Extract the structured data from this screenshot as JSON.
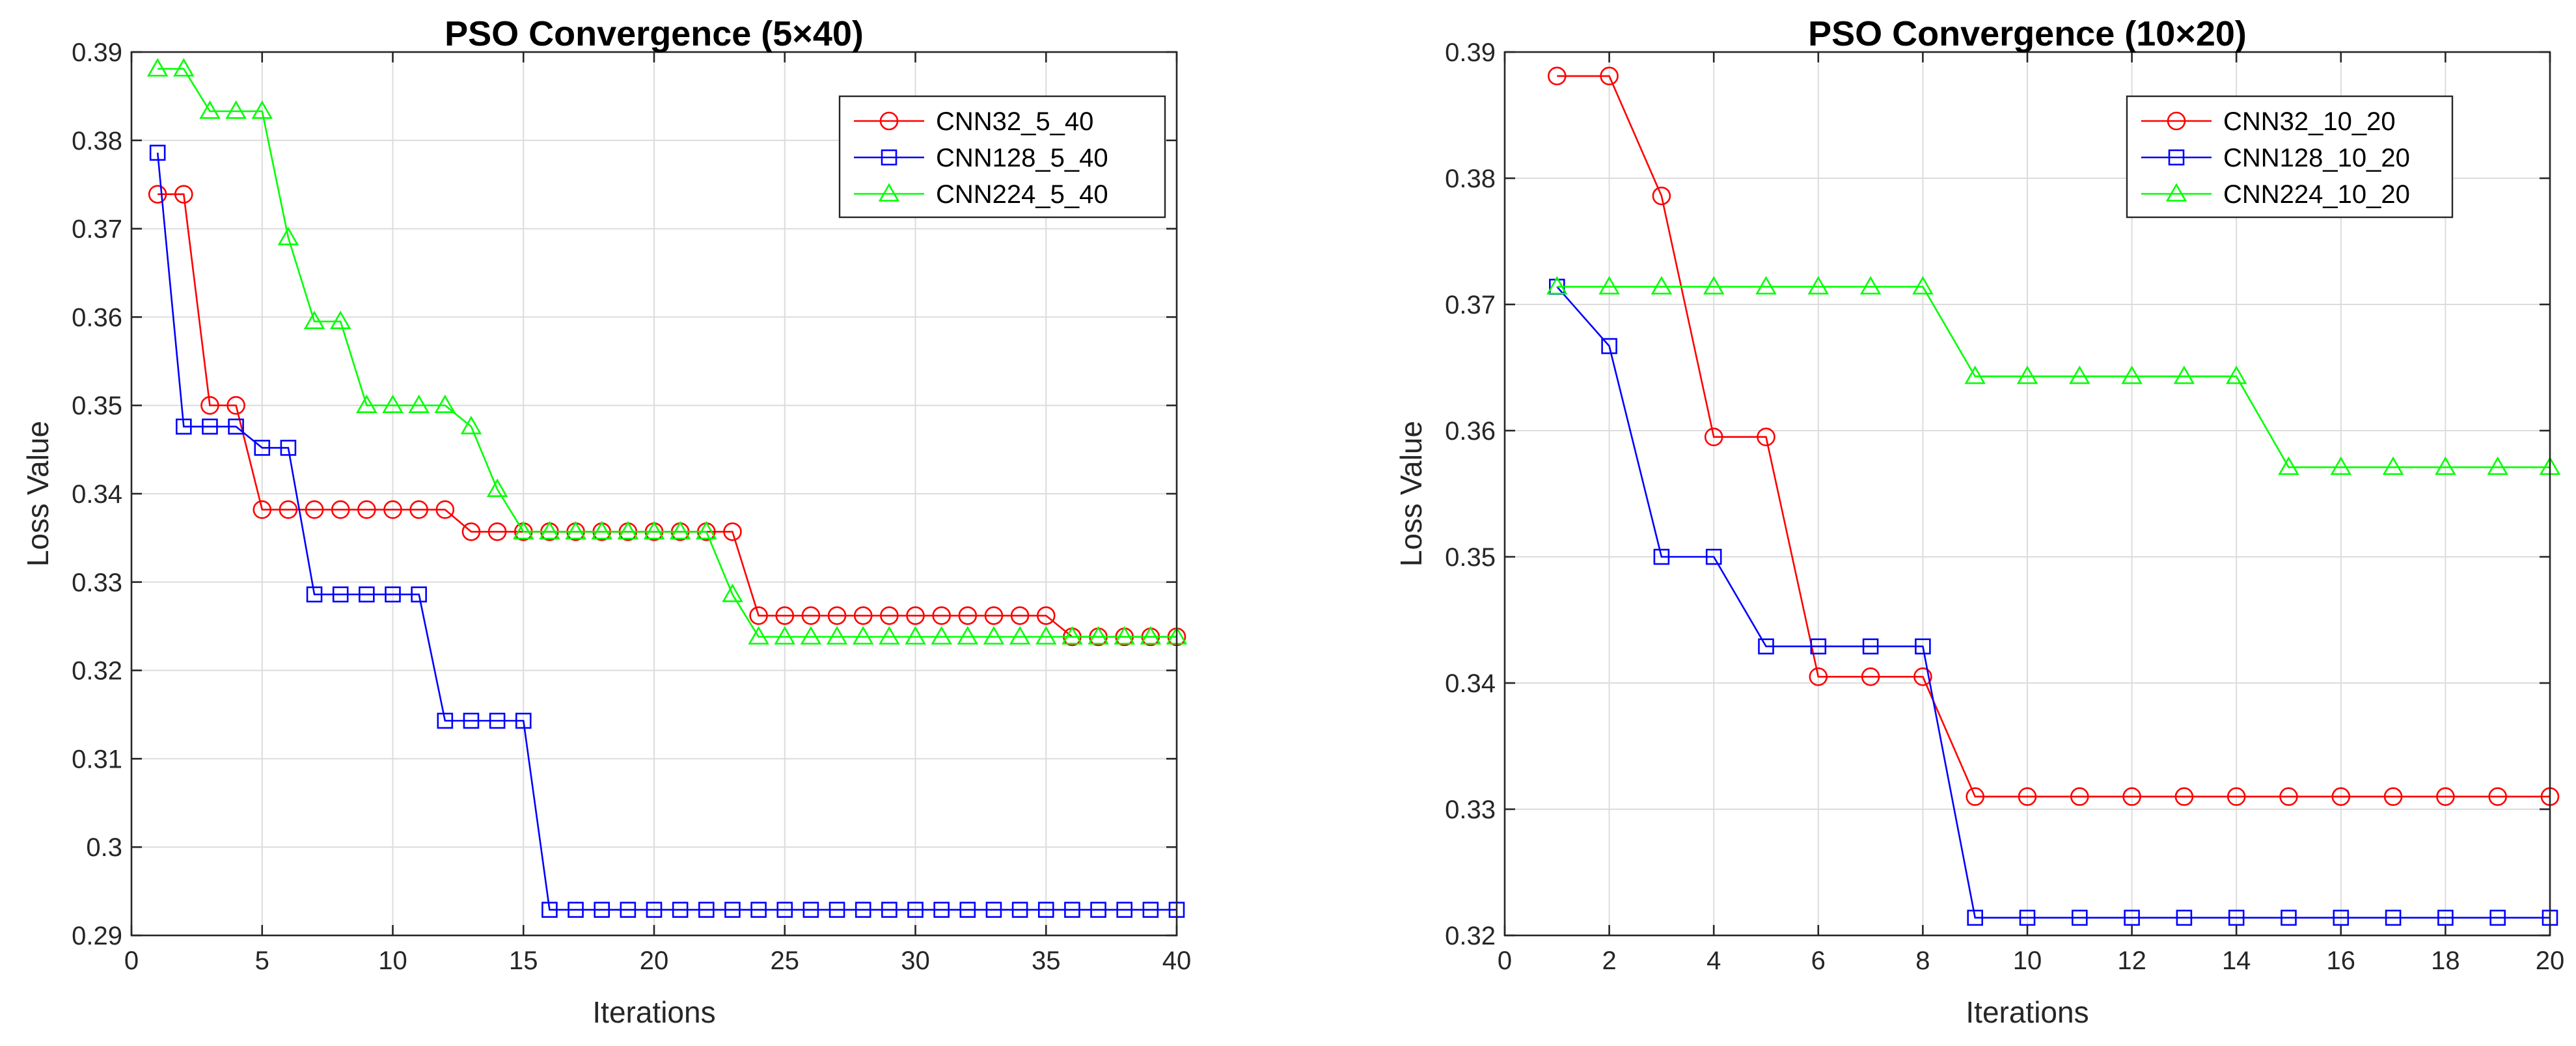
{
  "colors": {
    "red": "#ff0000",
    "blue": "#0000ff",
    "green": "#00ff00",
    "grid": "#dcdcdc",
    "axis": "#262626"
  },
  "chart_data": [
    {
      "type": "line",
      "title": "PSO Convergence (5×40)",
      "xlabel": "Iterations",
      "ylabel": "Loss Value",
      "xlim": [
        0,
        40
      ],
      "ylim": [
        0.29,
        0.39
      ],
      "xticks": [
        0,
        5,
        10,
        15,
        20,
        25,
        30,
        35,
        40
      ],
      "yticks": [
        0.29,
        0.3,
        0.31,
        0.32,
        0.33,
        0.34,
        0.35,
        0.36,
        0.37,
        0.38,
        0.39
      ],
      "xtick_labels": [
        "0",
        "5",
        "10",
        "15",
        "20",
        "25",
        "30",
        "35",
        "40"
      ],
      "ytick_labels": [
        "0.29",
        "0.3",
        "0.31",
        "0.32",
        "0.33",
        "0.34",
        "0.35",
        "0.36",
        "0.37",
        "0.38",
        "0.39"
      ],
      "grid": true,
      "legend_position": "top-right",
      "x": [
        1,
        2,
        3,
        4,
        5,
        6,
        7,
        8,
        9,
        10,
        11,
        12,
        13,
        14,
        15,
        16,
        17,
        18,
        19,
        20,
        21,
        22,
        23,
        24,
        25,
        26,
        27,
        28,
        29,
        30,
        31,
        32,
        33,
        34,
        35,
        36,
        37,
        38,
        39,
        40
      ],
      "series": [
        {
          "name": "CNN32_5_40",
          "color": "red",
          "marker": "circle",
          "values": [
            0.3739,
            0.3739,
            0.35,
            0.35,
            0.3382,
            0.3382,
            0.3382,
            0.3382,
            0.3382,
            0.3382,
            0.3382,
            0.3382,
            0.3357,
            0.3357,
            0.3357,
            0.3357,
            0.3357,
            0.3357,
            0.3357,
            0.3357,
            0.3357,
            0.3357,
            0.3357,
            0.3262,
            0.3262,
            0.3262,
            0.3262,
            0.3262,
            0.3262,
            0.3262,
            0.3262,
            0.3262,
            0.3262,
            0.3262,
            0.3262,
            0.3238,
            0.3238,
            0.3238,
            0.3238,
            0.3238
          ]
        },
        {
          "name": "CNN128_5_40",
          "color": "blue",
          "marker": "square",
          "values": [
            0.3786,
            0.3476,
            0.3476,
            0.3476,
            0.3452,
            0.3452,
            0.3286,
            0.3286,
            0.3286,
            0.3286,
            0.3286,
            0.3143,
            0.3143,
            0.3143,
            0.3143,
            0.2929,
            0.2929,
            0.2929,
            0.2929,
            0.2929,
            0.2929,
            0.2929,
            0.2929,
            0.2929,
            0.2929,
            0.2929,
            0.2929,
            0.2929,
            0.2929,
            0.2929,
            0.2929,
            0.2929,
            0.2929,
            0.2929,
            0.2929,
            0.2929,
            0.2929,
            0.2929,
            0.2929,
            0.2929
          ]
        },
        {
          "name": "CNN224_5_40",
          "color": "green",
          "marker": "triangle",
          "values": [
            0.3881,
            0.3881,
            0.3833,
            0.3833,
            0.3833,
            0.369,
            0.3595,
            0.3595,
            0.35,
            0.35,
            0.35,
            0.35,
            0.3476,
            0.3405,
            0.3357,
            0.3357,
            0.3357,
            0.3357,
            0.3357,
            0.3357,
            0.3357,
            0.3357,
            0.3286,
            0.3238,
            0.3238,
            0.3238,
            0.3238,
            0.3238,
            0.3238,
            0.3238,
            0.3238,
            0.3238,
            0.3238,
            0.3238,
            0.3238,
            0.3238,
            0.3238,
            0.3238,
            0.3238,
            0.3238
          ]
        }
      ]
    },
    {
      "type": "line",
      "title": "PSO Convergence (10×20)",
      "xlabel": "Iterations",
      "ylabel": "Loss Value",
      "xlim": [
        0,
        20
      ],
      "ylim": [
        0.32,
        0.39
      ],
      "xticks": [
        0,
        2,
        4,
        6,
        8,
        10,
        12,
        14,
        16,
        18,
        20
      ],
      "yticks": [
        0.32,
        0.33,
        0.34,
        0.35,
        0.36,
        0.37,
        0.38,
        0.39
      ],
      "xtick_labels": [
        "0",
        "2",
        "4",
        "6",
        "8",
        "10",
        "12",
        "14",
        "16",
        "18",
        "20"
      ],
      "ytick_labels": [
        "0.32",
        "0.33",
        "0.34",
        "0.35",
        "0.36",
        "0.37",
        "0.38",
        "0.39"
      ],
      "grid": true,
      "legend_position": "top-right",
      "x": [
        1,
        2,
        3,
        4,
        5,
        6,
        7,
        8,
        9,
        10,
        11,
        12,
        13,
        14,
        15,
        16,
        17,
        18,
        19,
        20
      ],
      "series": [
        {
          "name": "CNN32_10_20",
          "color": "red",
          "marker": "circle",
          "values": [
            0.3881,
            0.3881,
            0.3786,
            0.3595,
            0.3595,
            0.3405,
            0.3405,
            0.3405,
            0.331,
            0.331,
            0.331,
            0.331,
            0.331,
            0.331,
            0.331,
            0.331,
            0.331,
            0.331,
            0.331,
            0.331
          ]
        },
        {
          "name": "CNN128_10_20",
          "color": "blue",
          "marker": "square",
          "values": [
            0.3714,
            0.3667,
            0.35,
            0.35,
            0.3429,
            0.3429,
            0.3429,
            0.3429,
            0.3214,
            0.3214,
            0.3214,
            0.3214,
            0.3214,
            0.3214,
            0.3214,
            0.3214,
            0.3214,
            0.3214,
            0.3214,
            0.3214
          ]
        },
        {
          "name": "CNN224_10_20",
          "color": "green",
          "marker": "triangle",
          "values": [
            0.3714,
            0.3714,
            0.3714,
            0.3714,
            0.3714,
            0.3714,
            0.3714,
            0.3714,
            0.3643,
            0.3643,
            0.3643,
            0.3643,
            0.3643,
            0.3643,
            0.3571,
            0.3571,
            0.3571,
            0.3571,
            0.3571,
            0.3571
          ]
        }
      ]
    }
  ]
}
